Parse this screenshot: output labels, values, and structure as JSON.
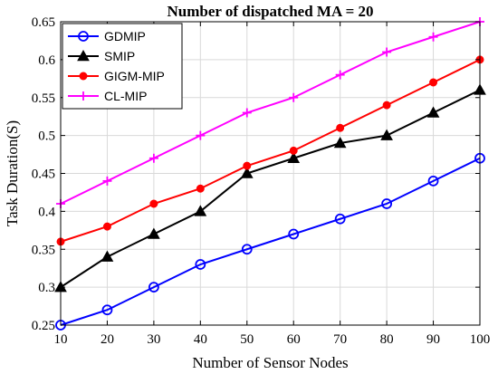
{
  "chart_data": {
    "type": "line",
    "title": "Number of dispatched MA = 20",
    "xlabel": "Number of Sensor Nodes",
    "ylabel": "Task Duration(S)",
    "x": [
      10,
      20,
      30,
      40,
      50,
      60,
      70,
      80,
      90,
      100
    ],
    "xlim": [
      10,
      100
    ],
    "ylim": [
      0.25,
      0.65
    ],
    "xticks": [
      10,
      20,
      30,
      40,
      50,
      60,
      70,
      80,
      90,
      100
    ],
    "yticks": [
      0.25,
      0.3,
      0.35,
      0.4,
      0.45,
      0.5,
      0.55,
      0.6,
      0.65
    ],
    "ytick_labels": [
      "0.25",
      "0.3",
      "0.35",
      "0.4",
      "0.45",
      "0.5",
      "0.55",
      "0.6",
      "0.65"
    ],
    "grid": true,
    "legend_position": "top-left",
    "series": [
      {
        "name": "GDMIP",
        "color": "#0000ff",
        "marker": "circle",
        "values": [
          0.25,
          0.27,
          0.3,
          0.33,
          0.35,
          0.37,
          0.39,
          0.41,
          0.44,
          0.47
        ]
      },
      {
        "name": "SMIP",
        "color": "#000000",
        "marker": "triangle",
        "values": [
          0.3,
          0.34,
          0.37,
          0.4,
          0.45,
          0.47,
          0.49,
          0.5,
          0.53,
          0.56
        ]
      },
      {
        "name": "GIGM-MIP",
        "color": "#ff0000",
        "marker": "dot",
        "values": [
          0.36,
          0.38,
          0.41,
          0.43,
          0.46,
          0.48,
          0.51,
          0.54,
          0.57,
          0.6
        ]
      },
      {
        "name": "CL-MIP",
        "color": "#ff00ff",
        "marker": "plus",
        "values": [
          0.41,
          0.44,
          0.47,
          0.5,
          0.53,
          0.55,
          0.58,
          0.61,
          0.63,
          0.65
        ]
      }
    ]
  }
}
